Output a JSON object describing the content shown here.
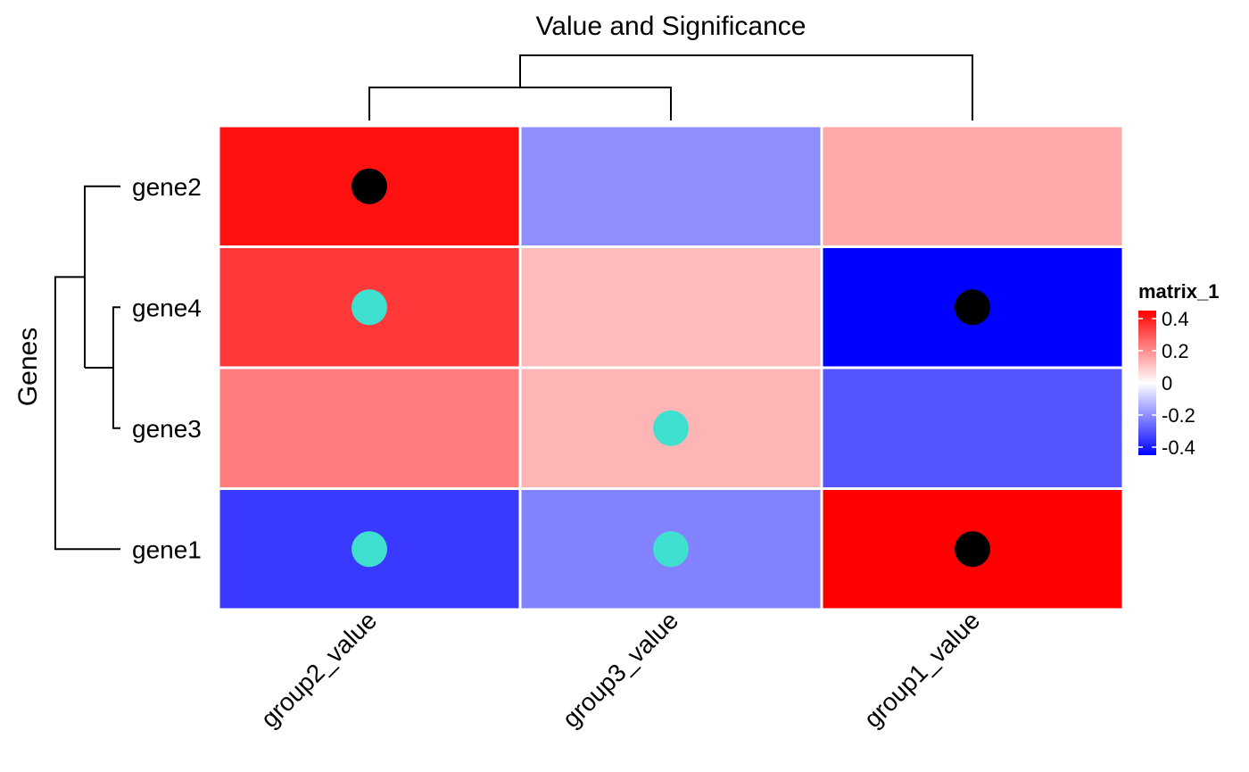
{
  "chart_data": {
    "type": "heatmap",
    "title": "Value and Significance",
    "ylabel": "Genes",
    "xlabel": "",
    "columns": [
      "group2_value",
      "group3_value",
      "group1_value"
    ],
    "rows": [
      "gene2",
      "gene4",
      "gene3",
      "gene1"
    ],
    "values": [
      [
        0.42,
        -0.2,
        0.15
      ],
      [
        0.35,
        0.12,
        -0.45
      ],
      [
        0.23,
        0.13,
        -0.3
      ],
      [
        -0.35,
        -0.22,
        0.45
      ]
    ],
    "significance": [
      [
        "high",
        "none",
        "none"
      ],
      [
        "low",
        "none",
        "high"
      ],
      [
        "none",
        "low",
        "none"
      ],
      [
        "low",
        "low",
        "high"
      ]
    ],
    "significance_colors": {
      "high": "#000000",
      "low": "#40E0D0"
    },
    "legend": {
      "title": "matrix_1",
      "ticks": [
        0.4,
        0.2,
        0,
        -0.2,
        -0.4
      ],
      "tick_labels": [
        "0.4",
        "0.2",
        "0",
        "-0.2",
        "-0.4"
      ],
      "range": [
        -0.45,
        0.45
      ],
      "placement": "right"
    },
    "colors": {
      "low": "#0000FF",
      "mid": "#FFFFFF",
      "high": "#FF0000"
    },
    "row_dendrogram": "((gene2,(gene4,gene3)),gene1)",
    "column_dendrogram": "((group2_value,group3_value),group1_value)"
  }
}
